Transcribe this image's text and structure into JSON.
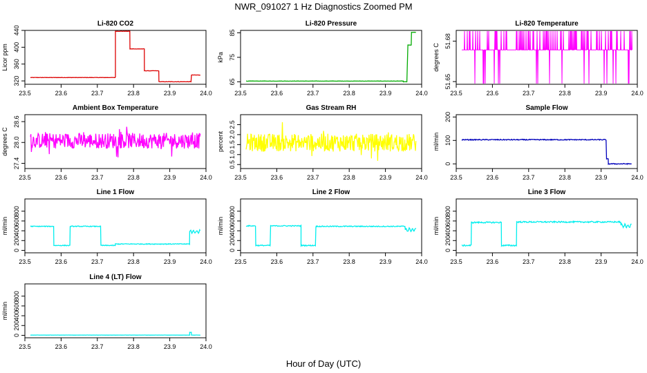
{
  "figure": {
    "title": "NWR_091027  1 Hz Diagnostics Zoomed PM",
    "xlabel": "Hour of Day (UTC)"
  },
  "chart_data": [
    {
      "type": "line",
      "title": "Li-820 CO2",
      "ylabel": "Licor ppm",
      "color": "#dd0000",
      "xlim": [
        23.5,
        24.0
      ],
      "ylim": [
        312,
        440
      ],
      "x_ticks": [
        "23.5",
        "23.6",
        "23.7",
        "23.8",
        "23.9",
        "24.0"
      ],
      "y_ticks": [
        {
          "value": 320,
          "label": "320"
        },
        {
          "value": 360,
          "label": "360"
        },
        {
          "value": 400,
          "label": "400"
        },
        {
          "value": 440,
          "label": "440"
        }
      ],
      "noise": 0.4,
      "segments": [
        [
          23.5,
          23.75,
          328
        ],
        [
          23.75,
          23.75,
          330
        ],
        [
          23.75,
          23.79,
          438
        ],
        [
          23.79,
          23.83,
          396
        ],
        [
          23.83,
          23.87,
          344
        ],
        [
          23.87,
          23.96,
          318
        ],
        [
          23.96,
          24.0,
          334
        ]
      ]
    },
    {
      "type": "line",
      "title": "Li-820 Pressure",
      "ylabel": "kPa",
      "color": "#00aa00",
      "xlim": [
        23.5,
        24.0
      ],
      "ylim": [
        64,
        86
      ],
      "x_ticks": [
        "23.5",
        "23.6",
        "23.7",
        "23.8",
        "23.9",
        "24.0"
      ],
      "y_ticks": [
        {
          "value": 65,
          "label": "65"
        },
        {
          "value": 75,
          "label": "75"
        },
        {
          "value": 85,
          "label": "85"
        }
      ],
      "noise": 0.05,
      "segments": [
        [
          23.5,
          23.95,
          65.3
        ],
        [
          23.95,
          23.96,
          65.0
        ],
        [
          23.962,
          23.972,
          80
        ],
        [
          23.972,
          24.0,
          85.2
        ]
      ]
    },
    {
      "type": "line",
      "title": "Li-820 Temperature",
      "ylabel": "degrees C",
      "color": "#ff00ff",
      "xlim": [
        23.5,
        24.0
      ],
      "ylim": [
        51.648,
        51.688
      ],
      "x_ticks": [
        "23.5",
        "23.6",
        "23.7",
        "23.8",
        "23.9",
        "24.0"
      ],
      "y_ticks": [
        {
          "value": 51.65,
          "label": "51.65"
        },
        {
          "value": 51.68,
          "label": "51.68"
        }
      ],
      "levels": [
        51.6875,
        51.6735,
        51.6485
      ],
      "baseline": 51.6735
    },
    {
      "type": "line",
      "title": "Ambient Box Temperature",
      "ylabel": "degrees C",
      "color": "#ff00ff",
      "xlim": [
        23.5,
        24.0
      ],
      "ylim": [
        27.25,
        28.8
      ],
      "x_ticks": [
        "23.5",
        "23.6",
        "23.7",
        "23.8",
        "23.9",
        "24.0"
      ],
      "y_ticks": [
        {
          "value": 27.4,
          "label": "27.4"
        },
        {
          "value": 28.0,
          "label": "28.0"
        },
        {
          "value": 28.6,
          "label": "28.6"
        }
      ],
      "mean": 28.05,
      "spread": 0.45
    },
    {
      "type": "line",
      "title": "Gas Stream RH",
      "ylabel": "percent",
      "color": "#ffff00",
      "xlim": [
        23.5,
        24.0
      ],
      "ylim": [
        0.3,
        3.0
      ],
      "x_ticks": [
        "23.5",
        "23.6",
        "23.7",
        "23.8",
        "23.9",
        "24.0"
      ],
      "y_ticks": [
        {
          "value": 0.5,
          "label": "0.5"
        },
        {
          "value": 1.0,
          "label": "1.0"
        },
        {
          "value": 1.5,
          "label": "1.5"
        },
        {
          "value": 2.0,
          "label": "2.0"
        },
        {
          "value": 2.5,
          "label": "2.5"
        }
      ],
      "mean": 1.6,
      "spread": 0.9
    },
    {
      "type": "line",
      "title": "Sample Flow",
      "ylabel": "ml/min",
      "color": "#0000bb",
      "xlim": [
        23.5,
        24.0
      ],
      "ylim": [
        -20,
        210
      ],
      "x_ticks": [
        "23.5",
        "23.6",
        "23.7",
        "23.8",
        "23.9",
        "24.0"
      ],
      "y_ticks": [
        {
          "value": 0,
          "label": "0"
        },
        {
          "value": 100,
          "label": "100"
        },
        {
          "value": 200,
          "label": "200"
        }
      ],
      "noise": 2,
      "segments": [
        [
          23.5,
          23.915,
          103
        ],
        [
          23.915,
          23.92,
          20
        ],
        [
          23.92,
          24.0,
          0
        ]
      ]
    },
    {
      "type": "line",
      "title": "Line 1 Flow",
      "ylabel": "ml/min",
      "color": "#00eeee",
      "xlim": [
        23.5,
        24.0
      ],
      "ylim": [
        -50,
        1050
      ],
      "x_ticks": [
        "23.5",
        "23.6",
        "23.7",
        "23.8",
        "23.9",
        "24.0"
      ],
      "y_ticks": [
        {
          "value": 0,
          "label": "0"
        },
        {
          "value": 200,
          "label": "200"
        },
        {
          "value": 400,
          "label": "400"
        },
        {
          "value": 600,
          "label": "600"
        },
        {
          "value": 800,
          "label": "800"
        }
      ],
      "noise": 8,
      "segments": [
        [
          23.5,
          23.501,
          100
        ],
        [
          23.501,
          23.58,
          490
        ],
        [
          23.58,
          23.625,
          100
        ],
        [
          23.625,
          23.71,
          490
        ],
        [
          23.71,
          23.75,
          100
        ],
        [
          23.75,
          23.955,
          130
        ]
      ],
      "wave": [
        23.955,
        24.0,
        380,
        55
      ]
    },
    {
      "type": "line",
      "title": "Line 2 Flow",
      "ylabel": "ml/min",
      "color": "#00eeee",
      "xlim": [
        23.5,
        24.0
      ],
      "ylim": [
        -50,
        1050
      ],
      "x_ticks": [
        "23.5",
        "23.6",
        "23.7",
        "23.8",
        "23.9",
        "24.0"
      ],
      "y_ticks": [
        {
          "value": 0,
          "label": "0"
        },
        {
          "value": 200,
          "label": "200"
        },
        {
          "value": 400,
          "label": "400"
        },
        {
          "value": 600,
          "label": "600"
        },
        {
          "value": 800,
          "label": "800"
        }
      ],
      "noise": 10,
      "segments": [
        [
          23.5,
          23.542,
          500
        ],
        [
          23.542,
          23.583,
          100
        ],
        [
          23.583,
          23.667,
          500
        ],
        [
          23.667,
          23.708,
          100
        ],
        [
          23.708,
          23.955,
          490
        ]
      ],
      "wave": [
        23.955,
        24.0,
        420,
        55
      ]
    },
    {
      "type": "line",
      "title": "Line 3 Flow",
      "ylabel": "ml/min",
      "color": "#00eeee",
      "xlim": [
        23.5,
        24.0
      ],
      "ylim": [
        -50,
        1050
      ],
      "x_ticks": [
        "23.5",
        "23.6",
        "23.7",
        "23.8",
        "23.9",
        "24.0"
      ],
      "y_ticks": [
        {
          "value": 0,
          "label": "0"
        },
        {
          "value": 200,
          "label": "200"
        },
        {
          "value": 400,
          "label": "400"
        },
        {
          "value": 600,
          "label": "600"
        },
        {
          "value": 800,
          "label": "800"
        }
      ],
      "noise": 14,
      "segments": [
        [
          23.5,
          23.502,
          580
        ],
        [
          23.502,
          23.542,
          100
        ],
        [
          23.542,
          23.625,
          570
        ],
        [
          23.625,
          23.667,
          100
        ],
        [
          23.667,
          23.955,
          580
        ]
      ],
      "wave": [
        23.955,
        24.0,
        500,
        55
      ]
    },
    {
      "type": "line",
      "title": "Line 4 (LT) Flow",
      "ylabel": "ml/min",
      "color": "#00eeee",
      "xlim": [
        23.5,
        24.0
      ],
      "ylim": [
        -50,
        1050
      ],
      "x_ticks": [
        "23.5",
        "23.6",
        "23.7",
        "23.8",
        "23.9",
        "24.0"
      ],
      "y_ticks": [
        {
          "value": 0,
          "label": "0"
        },
        {
          "value": 200,
          "label": "200"
        },
        {
          "value": 400,
          "label": "400"
        },
        {
          "value": 600,
          "label": "600"
        },
        {
          "value": 800,
          "label": "800"
        }
      ],
      "noise": 2,
      "segments": [
        [
          23.5,
          23.955,
          5
        ],
        [
          23.955,
          23.96,
          60
        ],
        [
          23.96,
          24.0,
          5
        ]
      ]
    }
  ]
}
